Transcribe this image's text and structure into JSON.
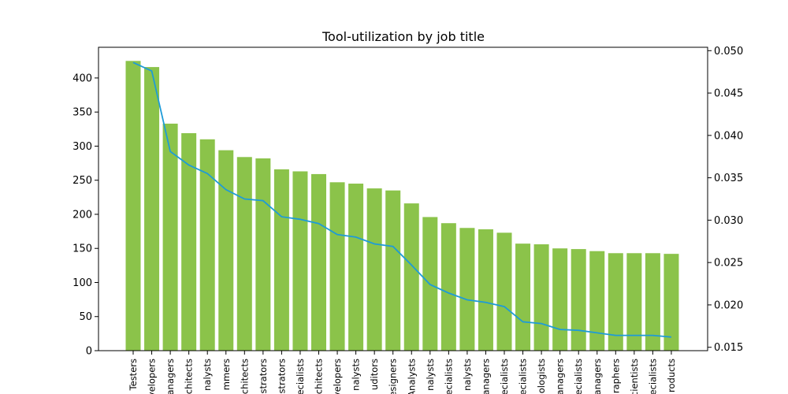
{
  "chart_data": {
    "type": "bar",
    "title": "Tool-utilization by job title",
    "xlabel": "",
    "ylabel": "",
    "ylim": [
      0,
      445
    ],
    "y2lim": [
      0.0146,
      0.0504
    ],
    "yticks": [
      0,
      50,
      100,
      150,
      200,
      250,
      300,
      350,
      400
    ],
    "y2ticks": [
      0.015,
      0.02,
      0.025,
      0.03,
      0.035,
      0.04,
      0.045,
      0.05
    ],
    "categories": [
      "Testers",
      "velopers",
      "anagers",
      "chitects",
      "nalysts",
      "mmers",
      "chitects",
      "strators",
      "strators",
      "ecialists",
      "chitects",
      "velopers",
      "nalysts",
      "uditors",
      "esigners",
      "Analysts",
      "nalysts",
      "ecialists",
      "nalysts",
      "anagers",
      "ecialists",
      "ecialists",
      "ologists",
      "anagers",
      "ecialists",
      "anagers",
      "raphers",
      "cientists",
      "ecialists",
      "roducts"
    ],
    "series": [
      {
        "type": "bar",
        "color": "#8bc34a",
        "values": [
          425,
          416,
          333,
          319,
          310,
          294,
          284,
          282,
          266,
          263,
          259,
          247,
          245,
          238,
          235,
          216,
          196,
          187,
          180,
          178,
          173,
          157,
          156,
          150,
          149,
          146,
          143,
          143,
          143,
          142
        ]
      },
      {
        "type": "line",
        "axis": "right",
        "color": "#1e9bd7",
        "values": [
          0.0486,
          0.0476,
          0.0381,
          0.0365,
          0.0355,
          0.0336,
          0.0325,
          0.0323,
          0.0304,
          0.0301,
          0.0296,
          0.0283,
          0.028,
          0.0272,
          0.0269,
          0.0247,
          0.0224,
          0.0214,
          0.0206,
          0.0203,
          0.0198,
          0.018,
          0.0178,
          0.0171,
          0.017,
          0.0167,
          0.0164,
          0.0164,
          0.0164,
          0.0162
        ]
      }
    ],
    "grid": false,
    "legend": "none"
  }
}
